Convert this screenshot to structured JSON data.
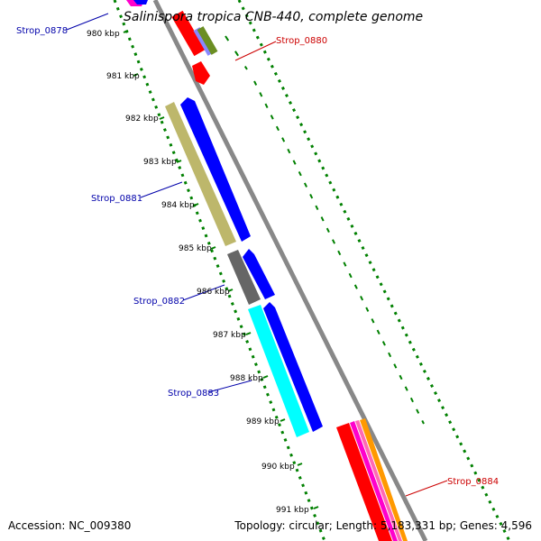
{
  "title": "Salinispora tropica CNB-440, complete genome",
  "ticks": [
    "980 kbp",
    "981 kbp",
    "982 kbp",
    "983 kbp",
    "984 kbp",
    "985 kbp",
    "986 kbp",
    "987 kbp",
    "988 kbp",
    "989 kbp",
    "990 kbp",
    "991 kbp"
  ],
  "labels": {
    "strop_0878": "Strop_0878",
    "strop_0880": "Strop_0880",
    "strop_0881": "Strop_0881",
    "strop_0882": "Strop_0882",
    "strop_0883": "Strop_0883",
    "strop_0884": "Strop_0884"
  },
  "footer": {
    "accession": "Accession: NC_009380",
    "topology": "Topology: circular; Length: 5,183,331 bp; Genes: 4,596"
  },
  "colors": {
    "forward_label": "#cc0000",
    "reverse_label": "#0000aa",
    "backbone": "#888888",
    "gc_skew": "#008000",
    "tick_dots": "#008000",
    "red": "#ff0000",
    "blue": "#0000ff",
    "khaki": "#bdb76b",
    "gray": "#666666",
    "cyan": "#00ffff",
    "magenta": "#ff00cc",
    "pink": "#ff69b4",
    "orange": "#ff9900",
    "olive": "#6b8e23",
    "lavender": "#8888ff"
  }
}
